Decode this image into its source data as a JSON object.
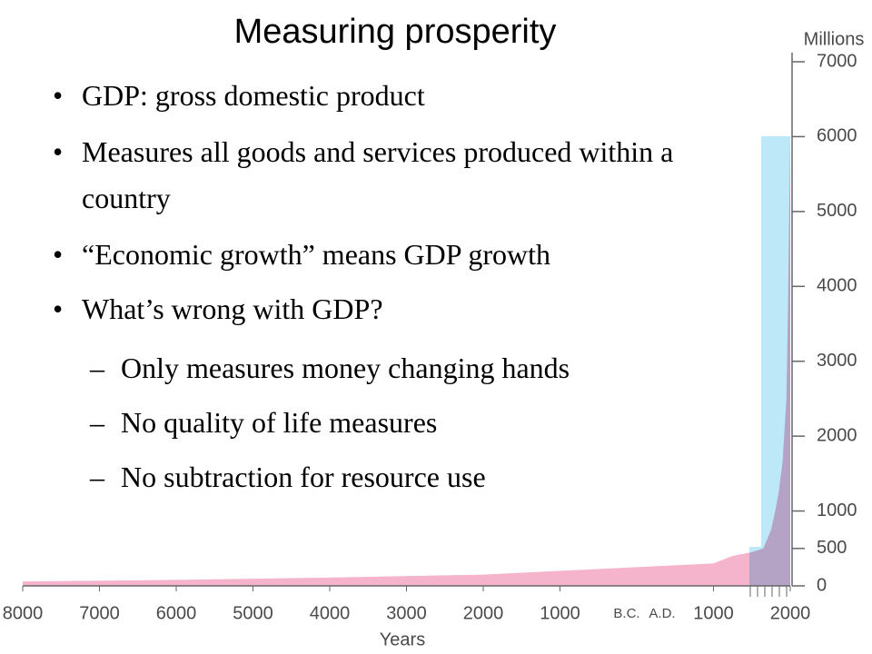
{
  "slide": {
    "title": "Measuring prosperity",
    "bullets": [
      "GDP: gross domestic product",
      "Measures all goods and services produced within a country",
      "“Economic growth” means GDP growth",
      "What’s wrong with GDP?"
    ],
    "sub_bullets": [
      "Only measures money changing hands",
      "No quality of life measures",
      "No subtraction for resource use"
    ]
  },
  "chart_data": {
    "type": "area",
    "y_label": "Millions",
    "x_label": "Years",
    "era_labels": [
      "B.C.",
      "A.D."
    ],
    "x": [
      -8000,
      -6000,
      -4000,
      -2000,
      0,
      1000,
      1250,
      1500,
      1650,
      1750,
      1800,
      1850,
      1900,
      1950,
      1970,
      1990,
      2000
    ],
    "values": [
      60,
      80,
      110,
      150,
      250,
      300,
      400,
      450,
      500,
      750,
      980,
      1250,
      1650,
      2500,
      3700,
      5300,
      6000
    ],
    "color": "#f5b3cc",
    "xlim": [
      -8000,
      2000
    ],
    "xticks": [
      {
        "value": -8000,
        "label": "8000"
      },
      {
        "value": -7000,
        "label": "7000"
      },
      {
        "value": -6000,
        "label": "6000"
      },
      {
        "value": -5000,
        "label": "5000"
      },
      {
        "value": -4000,
        "label": "4000"
      },
      {
        "value": -3000,
        "label": "3000"
      },
      {
        "value": -2000,
        "label": "2000"
      },
      {
        "value": -1000,
        "label": "1000"
      },
      1000,
      2000
    ],
    "ylim": [
      0,
      7000
    ],
    "yticks": [
      0,
      500,
      1000,
      2000,
      3000,
      4000,
      5000,
      6000,
      7000
    ]
  }
}
